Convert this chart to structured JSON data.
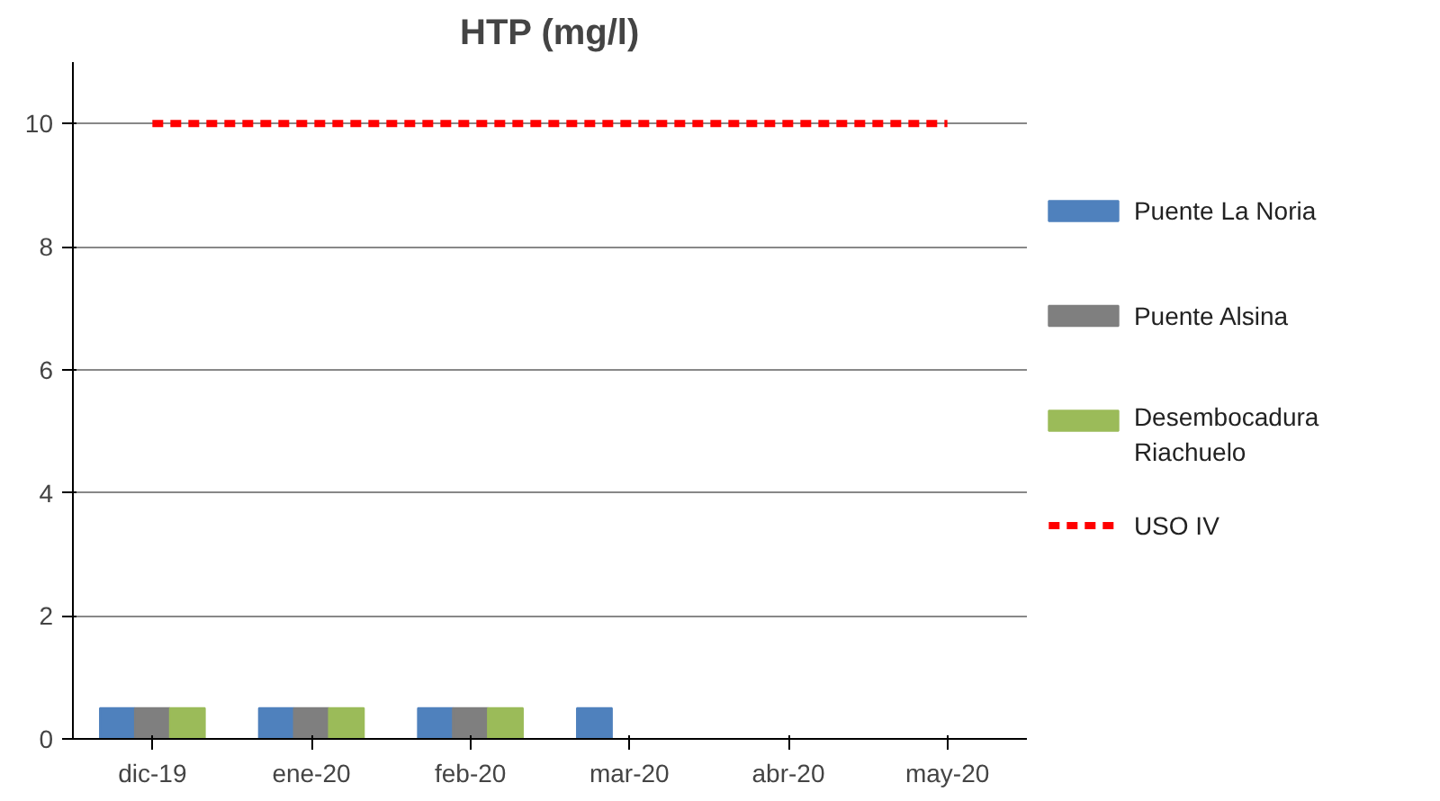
{
  "chart_data": {
    "type": "bar",
    "title": "HTP (mg/l)",
    "categories": [
      "dic-19",
      "ene-20",
      "feb-20",
      "mar-20",
      "abr-20",
      "may-20"
    ],
    "series": [
      {
        "name": "Puente La Noria",
        "color": "#4f81bd",
        "values": [
          0.5,
          0.5,
          0.5,
          0.5,
          null,
          null
        ]
      },
      {
        "name": "Puente Alsina",
        "color": "#7f7f7f",
        "values": [
          0.5,
          0.5,
          0.5,
          null,
          null,
          null
        ]
      },
      {
        "name": "Desembocadura Riachuelo",
        "color": "#9bbb59",
        "values": [
          0.5,
          0.5,
          0.5,
          null,
          null,
          null
        ]
      },
      {
        "name": "USO IV",
        "color": "#ff0000",
        "type": "line",
        "line_style": "dashed",
        "values": [
          10,
          10,
          10,
          10,
          10,
          10
        ]
      }
    ],
    "ylim": [
      0,
      11
    ],
    "yticks": [
      0,
      2,
      4,
      6,
      8,
      10
    ],
    "grid": "y",
    "legend": "right"
  }
}
